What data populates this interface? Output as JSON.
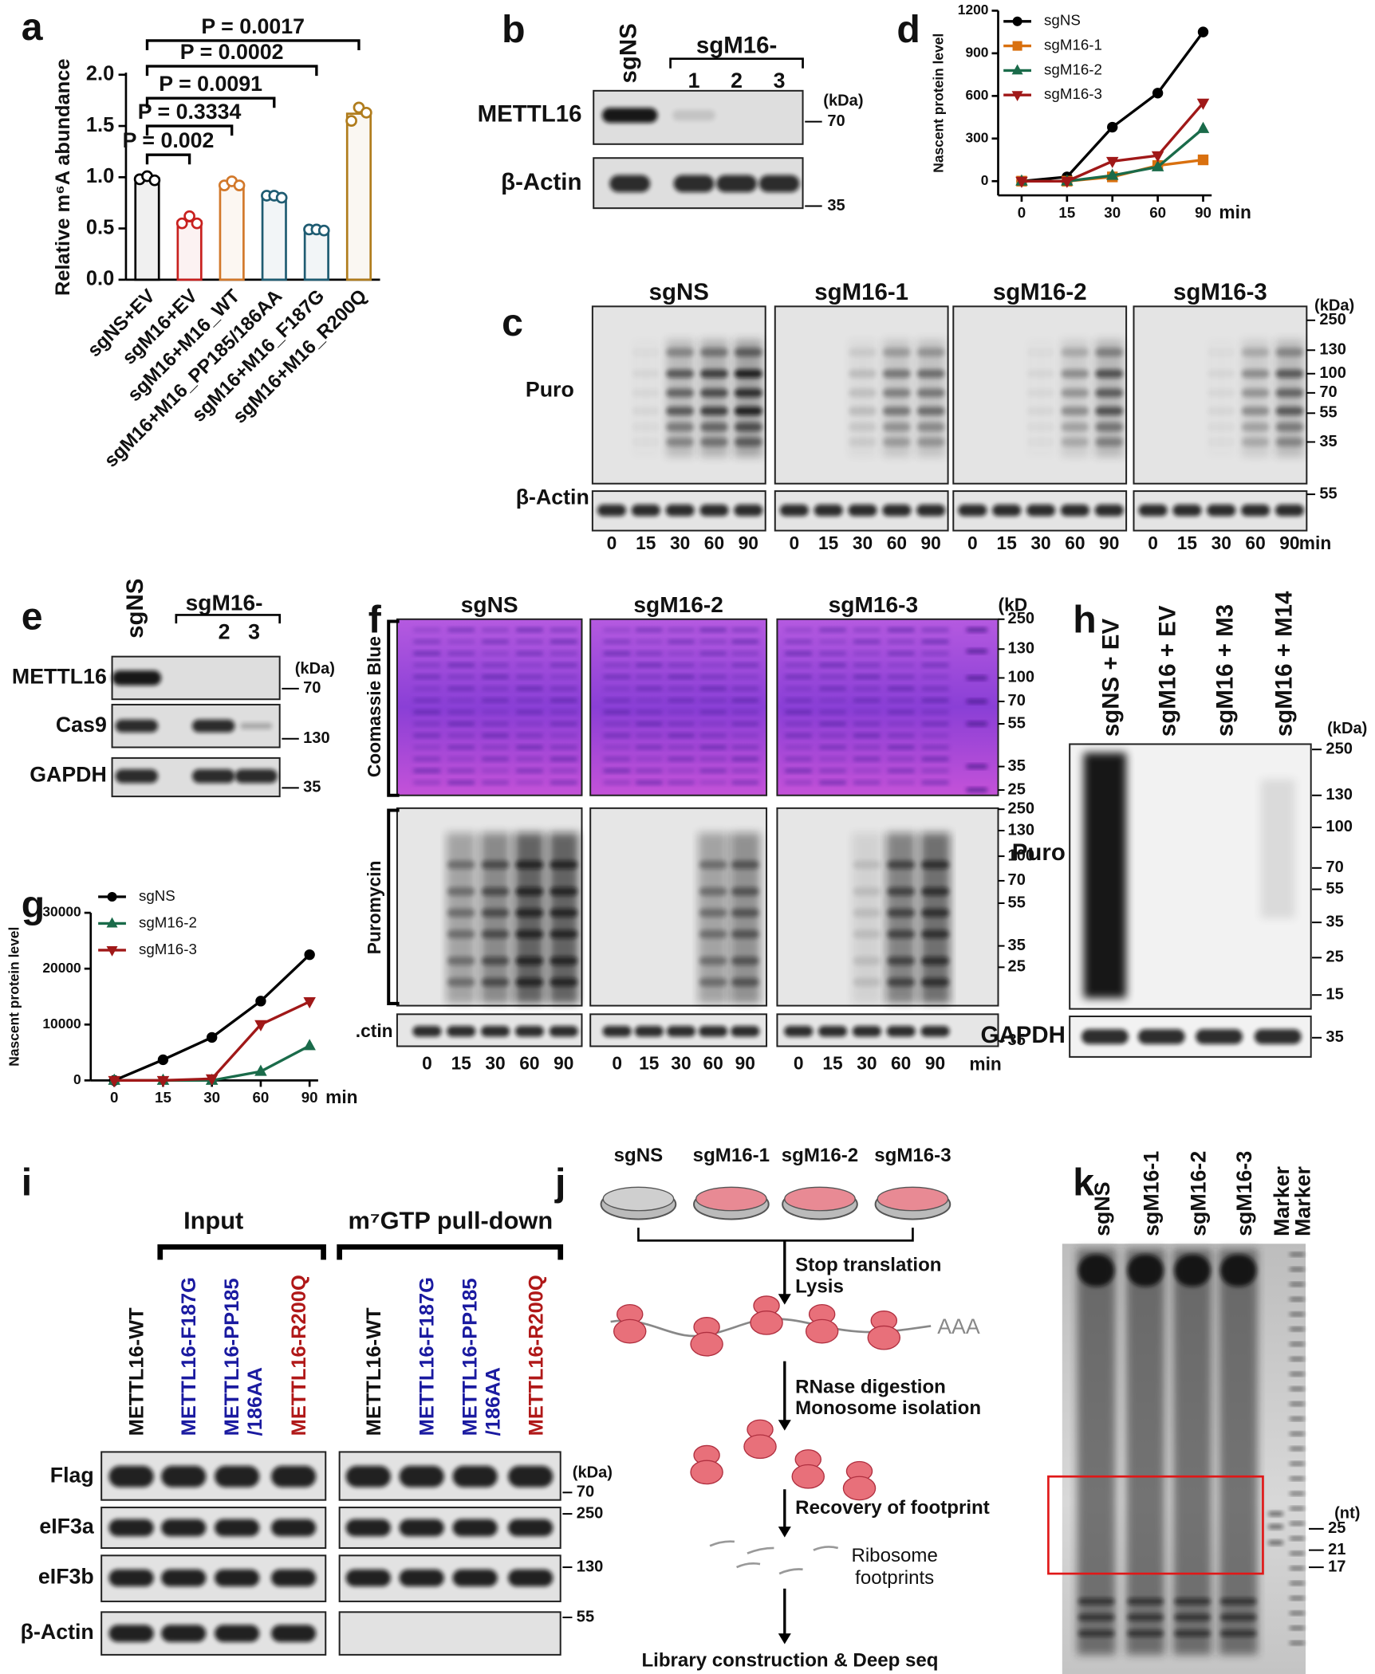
{
  "chart_data": [
    {
      "type": "bar",
      "ylabel": "Relative m⁶A abundance",
      "categories": [
        "sgNS+EV",
        "sgM16+EV",
        "sgM16+M16_WT",
        "sgM16+M16_PP185/186AA",
        "sgM16+M16_F187G",
        "sgM16+M16_R200Q"
      ],
      "values": [
        0.99,
        0.57,
        0.93,
        0.81,
        0.49,
        1.62
      ],
      "replicates": [
        [
          0.98,
          1.01,
          0.97
        ],
        [
          0.55,
          0.62,
          0.55
        ],
        [
          0.92,
          0.96,
          0.92
        ],
        [
          0.82,
          0.82,
          0.8
        ],
        [
          0.49,
          0.49,
          0.48
        ],
        [
          1.55,
          1.68,
          1.63
        ]
      ],
      "colors": [
        "#000000",
        "#c8201e",
        "#d2782a",
        "#1f5c72",
        "#1f5c72",
        "#b07c1c"
      ],
      "annotations": [
        "P = 0.002",
        "P = 0.3334",
        "P = 0.0091",
        "P = 0.0002",
        "P = 0.0017"
      ],
      "ylim": [
        0,
        2
      ],
      "yticks": [
        {
          "value": 0,
          "label": "0.0"
        },
        0.5,
        {
          "value": 1,
          "label": "1.0"
        },
        1.5,
        {
          "value": 2,
          "label": "2.0"
        }
      ]
    },
    {
      "type": "line",
      "ylabel": "Nascent protein level",
      "xlabel": "min",
      "categories": [
        "0",
        "15",
        "30",
        "60",
        "90"
      ],
      "series": [
        {
          "name": "sgNS",
          "color": "#000000",
          "marker": "circle",
          "values": [
            0,
            30,
            380,
            620,
            1050
          ]
        },
        {
          "name": "sgM16-1",
          "color": "#d9700f",
          "marker": "square",
          "values": [
            0,
            0,
            30,
            110,
            150
          ]
        },
        {
          "name": "sgM16-2",
          "color": "#1a6b4a",
          "marker": "triangle",
          "values": [
            0,
            0,
            40,
            100,
            370
          ]
        },
        {
          "name": "sgM16-3",
          "color": "#a01818",
          "marker": "triangle-down",
          "values": [
            0,
            0,
            140,
            180,
            550
          ]
        }
      ],
      "ylim": [
        -100,
        1200
      ],
      "yticks": [
        0,
        300,
        600,
        900,
        1200
      ],
      "legend": "upper-left"
    },
    {
      "type": "line",
      "ylabel": "Nascent protein level",
      "xlabel": "min",
      "categories": [
        "0",
        "15",
        "30",
        "60",
        "90"
      ],
      "series": [
        {
          "name": "sgNS",
          "color": "#000000",
          "marker": "circle",
          "values": [
            0,
            3700,
            7700,
            14200,
            22500
          ]
        },
        {
          "name": "sgM16-2",
          "color": "#1a6b4a",
          "marker": "triangle",
          "values": [
            0,
            0,
            0,
            1600,
            6200
          ]
        },
        {
          "name": "sgM16-3",
          "color": "#a01818",
          "marker": "triangle-down",
          "values": [
            0,
            0,
            300,
            10000,
            14100
          ]
        }
      ],
      "ylim": [
        0,
        30000
      ],
      "yticks": [
        0,
        10000,
        20000,
        30000
      ],
      "legend": "upper-left"
    }
  ],
  "figure": {
    "letters": [
      "a",
      "b",
      "c",
      "d",
      "e",
      "f",
      "g",
      "h",
      "i",
      "j",
      "k"
    ],
    "b": {
      "lanes": [
        "sgNS"
      ],
      "group": "sgM16-",
      "group_lanes": [
        "1",
        "2",
        "3"
      ],
      "rows": [
        "METTL16",
        "β-Actin"
      ],
      "unit": "(kDa)",
      "markers": [
        "70",
        "35"
      ]
    },
    "c": {
      "groups": [
        "sgNS",
        "sgM16-1",
        "sgM16-2",
        "sgM16-3"
      ],
      "rows": [
        "Puro",
        "β-Actin"
      ],
      "times": [
        "0",
        "15",
        "30",
        "60",
        "90"
      ],
      "time_unit": "min",
      "unit": "(kDa)",
      "markers": [
        "250",
        "130",
        "100",
        "70",
        "55",
        "35",
        "55"
      ]
    },
    "e": {
      "lanes": [
        "sgNS"
      ],
      "group": "sgM16-",
      "group_lanes": [
        "2",
        "3"
      ],
      "rows": [
        "METTL16",
        "Cas9",
        "GAPDH"
      ],
      "unit": "(kDa)",
      "markers": [
        "70",
        "130",
        "35"
      ]
    },
    "f": {
      "groups": [
        "sgNS",
        "sgM16-2",
        "sgM16-3"
      ],
      "unit": "(kD",
      "rows": [
        "Coomassie Blue",
        "Puromycin",
        ".ctin"
      ],
      "markers": [
        "250",
        "130",
        "100",
        "70",
        "55",
        "35",
        "25",
        "250",
        "130",
        "100",
        "70",
        "55",
        "35",
        "25",
        "35"
      ],
      "times": [
        "0",
        "15",
        "30",
        "60",
        "90"
      ],
      "time_unit": "min"
    },
    "h": {
      "lanes": [
        "sgNS + EV",
        "sgM16 + EV",
        "sgM16 + M3",
        "sgM16 + M14"
      ],
      "unit": "(kDa)",
      "rows": [
        "Puro",
        "GAPDH"
      ],
      "markers": [
        "250",
        "130",
        "100",
        "70",
        "55",
        "35",
        "25",
        "15",
        "35"
      ]
    },
    "i": {
      "groups": [
        "Input",
        "m⁷GTP pull-down"
      ],
      "lanes": [
        [
          "METTL16-WT"
        ],
        [
          "METTL16-F187G"
        ],
        [
          "METTL16-PP185",
          "/186AA"
        ],
        [
          "METTL16-R200Q"
        ]
      ],
      "rows": [
        "Flag",
        "eIF3a",
        "eIF3b",
        "β-Actin"
      ],
      "unit": "(kDa)",
      "markers": [
        "70",
        "250",
        "130",
        "55"
      ]
    },
    "j": {
      "samples": [
        "sgNS",
        "sgM16-1",
        "sgM16-2",
        "sgM16-3"
      ],
      "steps": [
        "Stop translation",
        "Lysis",
        "RNase digestion",
        "Monosome isolation",
        "Recovery of footprint",
        "Library construction & Deep seq"
      ],
      "tail": "AAA",
      "footprints": [
        "Ribosome",
        "footprints"
      ]
    },
    "k": {
      "lanes": [
        "sgNS",
        "sgM16-1",
        "sgM16-2",
        "sgM16-3",
        "Marker",
        "Marker"
      ],
      "unit": "(nt)",
      "markers": [
        "25",
        "21",
        "17"
      ]
    }
  }
}
